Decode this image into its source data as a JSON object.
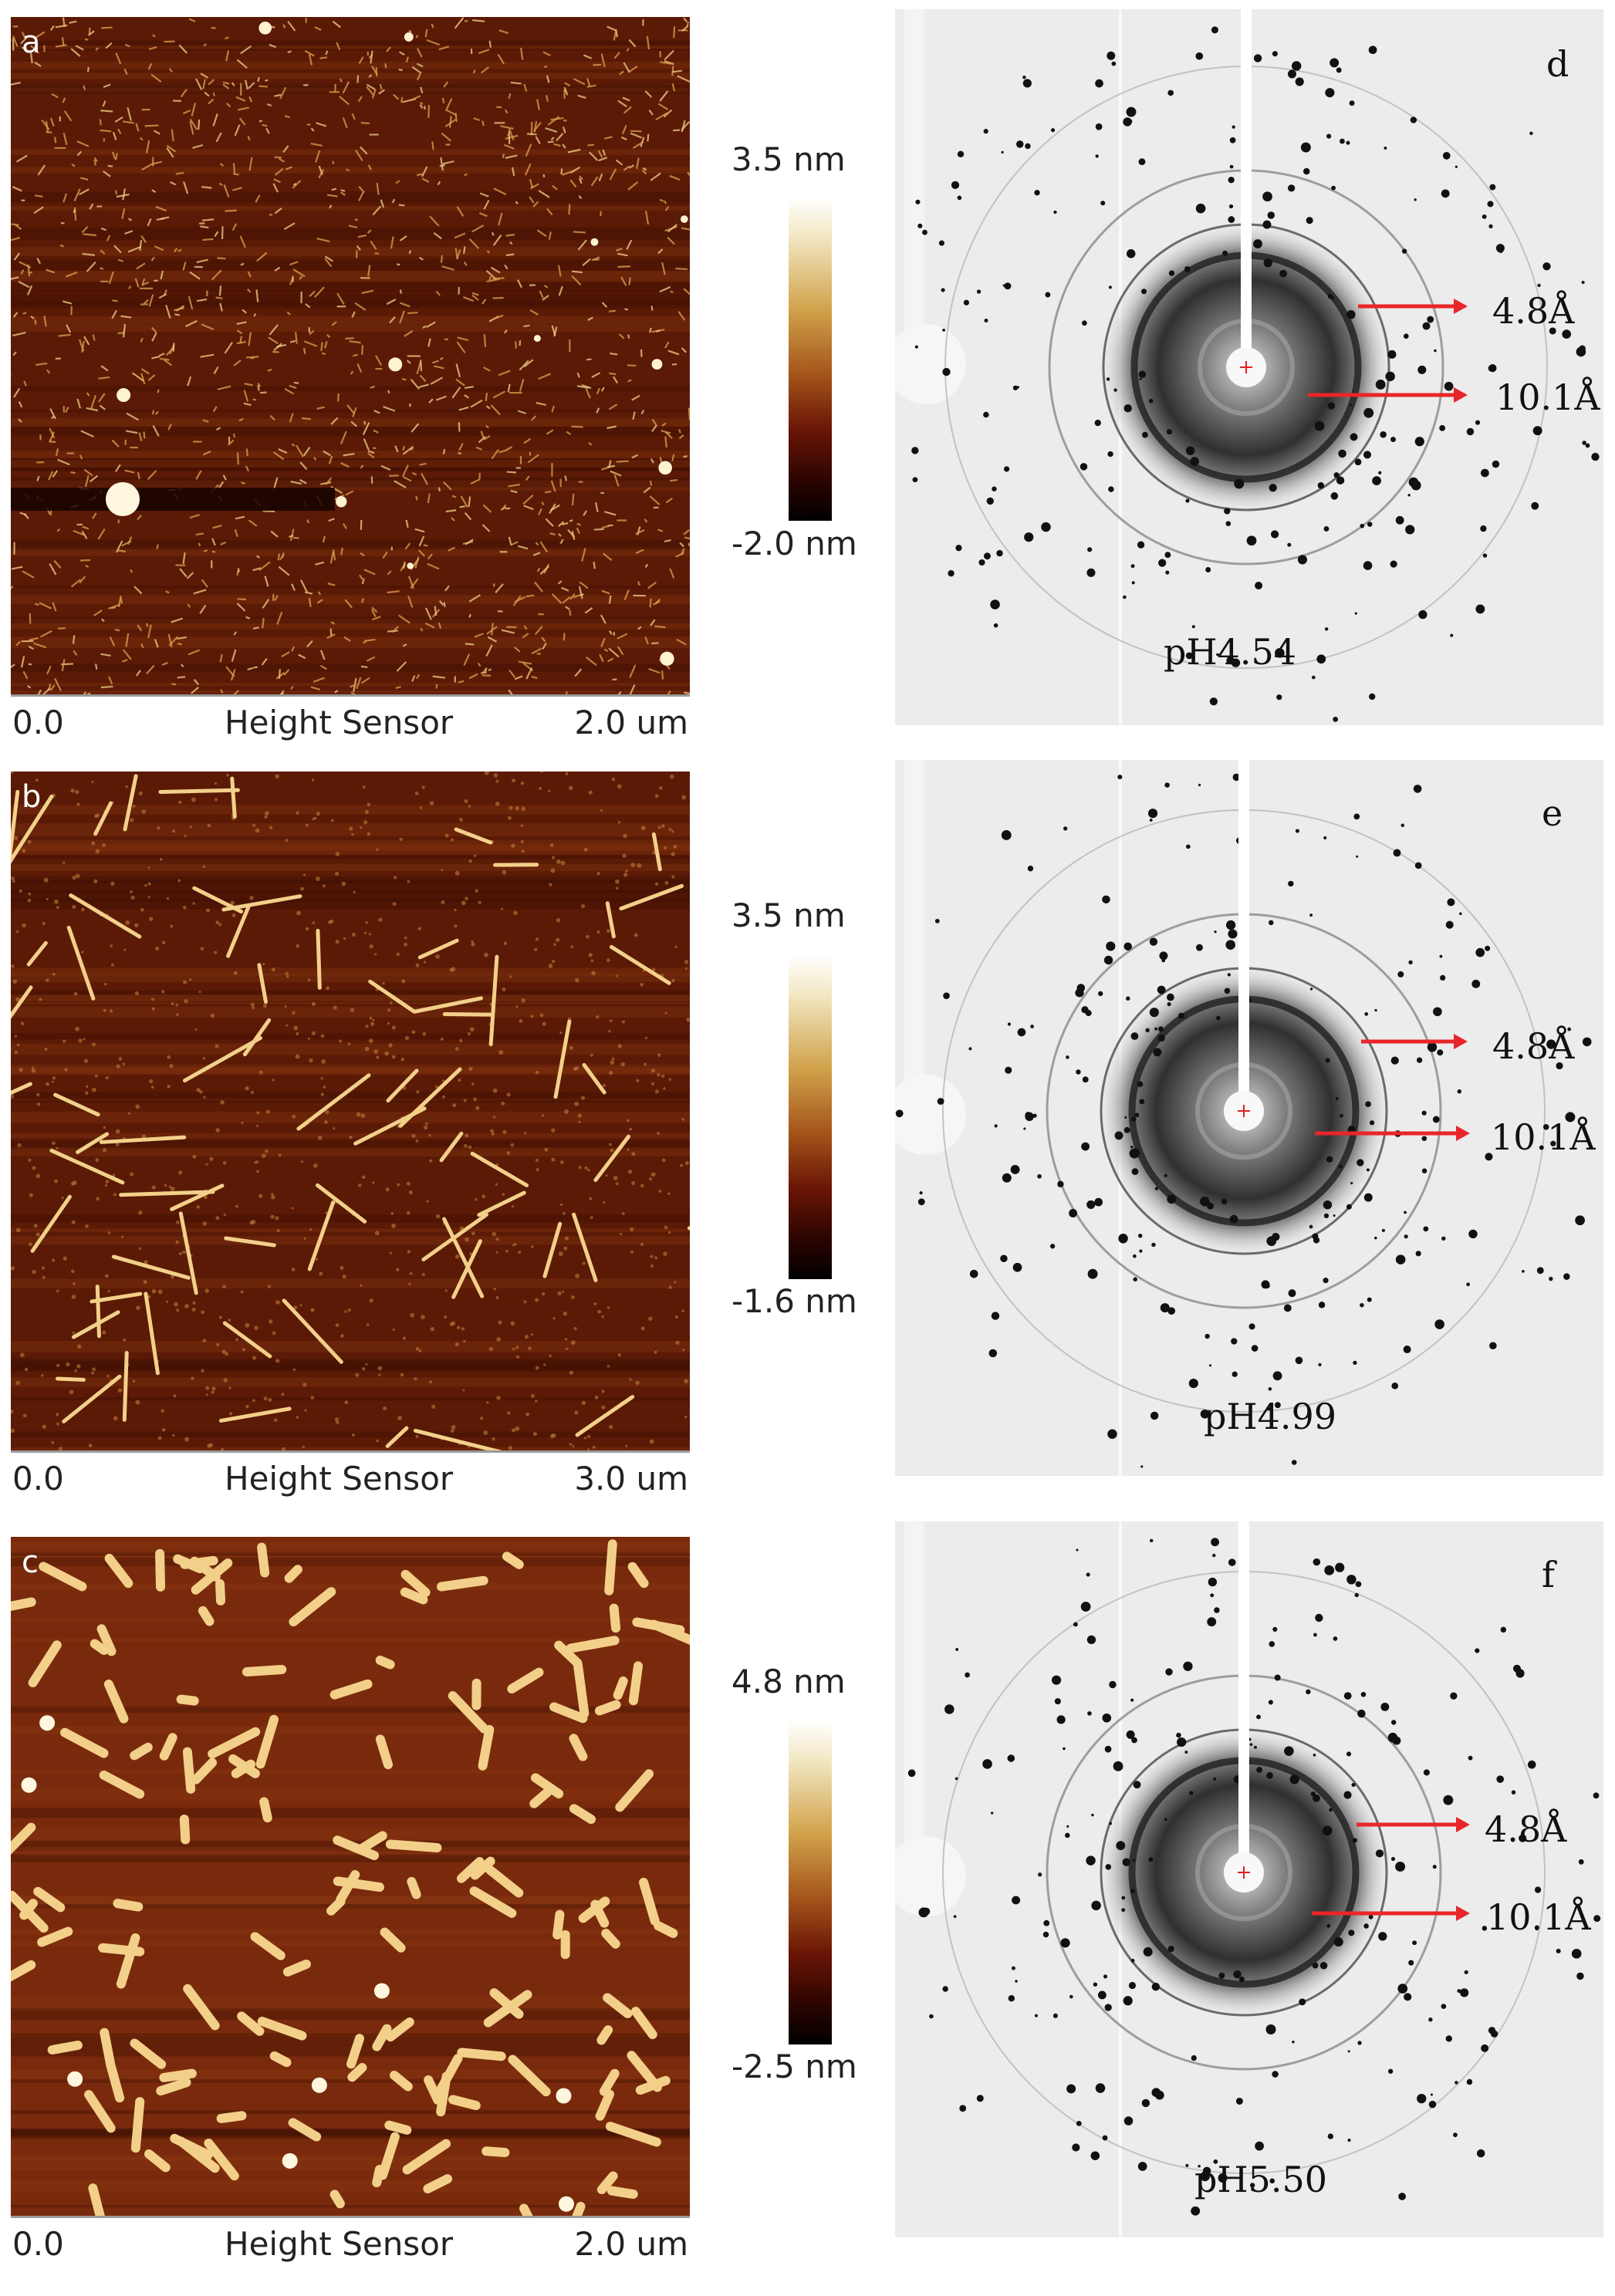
{
  "panels": [
    {
      "afm_label": "a",
      "axis": {
        "start": "0.0",
        "title": "Height Sensor",
        "end": "2.0 um"
      },
      "colorbar": {
        "max": "3.5 nm",
        "min": "-2.0 nm"
      },
      "diffraction_label": "d",
      "annotations": [
        "4.8Å",
        "10.1Å"
      ],
      "ph": "pH4.54"
    },
    {
      "afm_label": "b",
      "axis": {
        "start": "0.0",
        "title": "Height Sensor",
        "end": "3.0 um"
      },
      "colorbar": {
        "max": "3.5 nm",
        "min": "-1.6 nm"
      },
      "diffraction_label": "e",
      "annotations": [
        "4.8Å",
        "10.1Å"
      ],
      "ph": "pH4.99"
    },
    {
      "afm_label": "c",
      "axis": {
        "start": "0.0",
        "title": "Height Sensor",
        "end": "2.0 um"
      },
      "colorbar": {
        "max": "4.8 nm",
        "min": "-2.5 nm"
      },
      "diffraction_label": "f",
      "annotations": [
        "4.8Å",
        "10.1Å"
      ],
      "ph": "pH5.50"
    }
  ],
  "colors": {
    "afm_background": "#5a1a05",
    "fibril": "#f3d08a",
    "arrow": "#e8262a",
    "center_mark": "#e02020"
  }
}
